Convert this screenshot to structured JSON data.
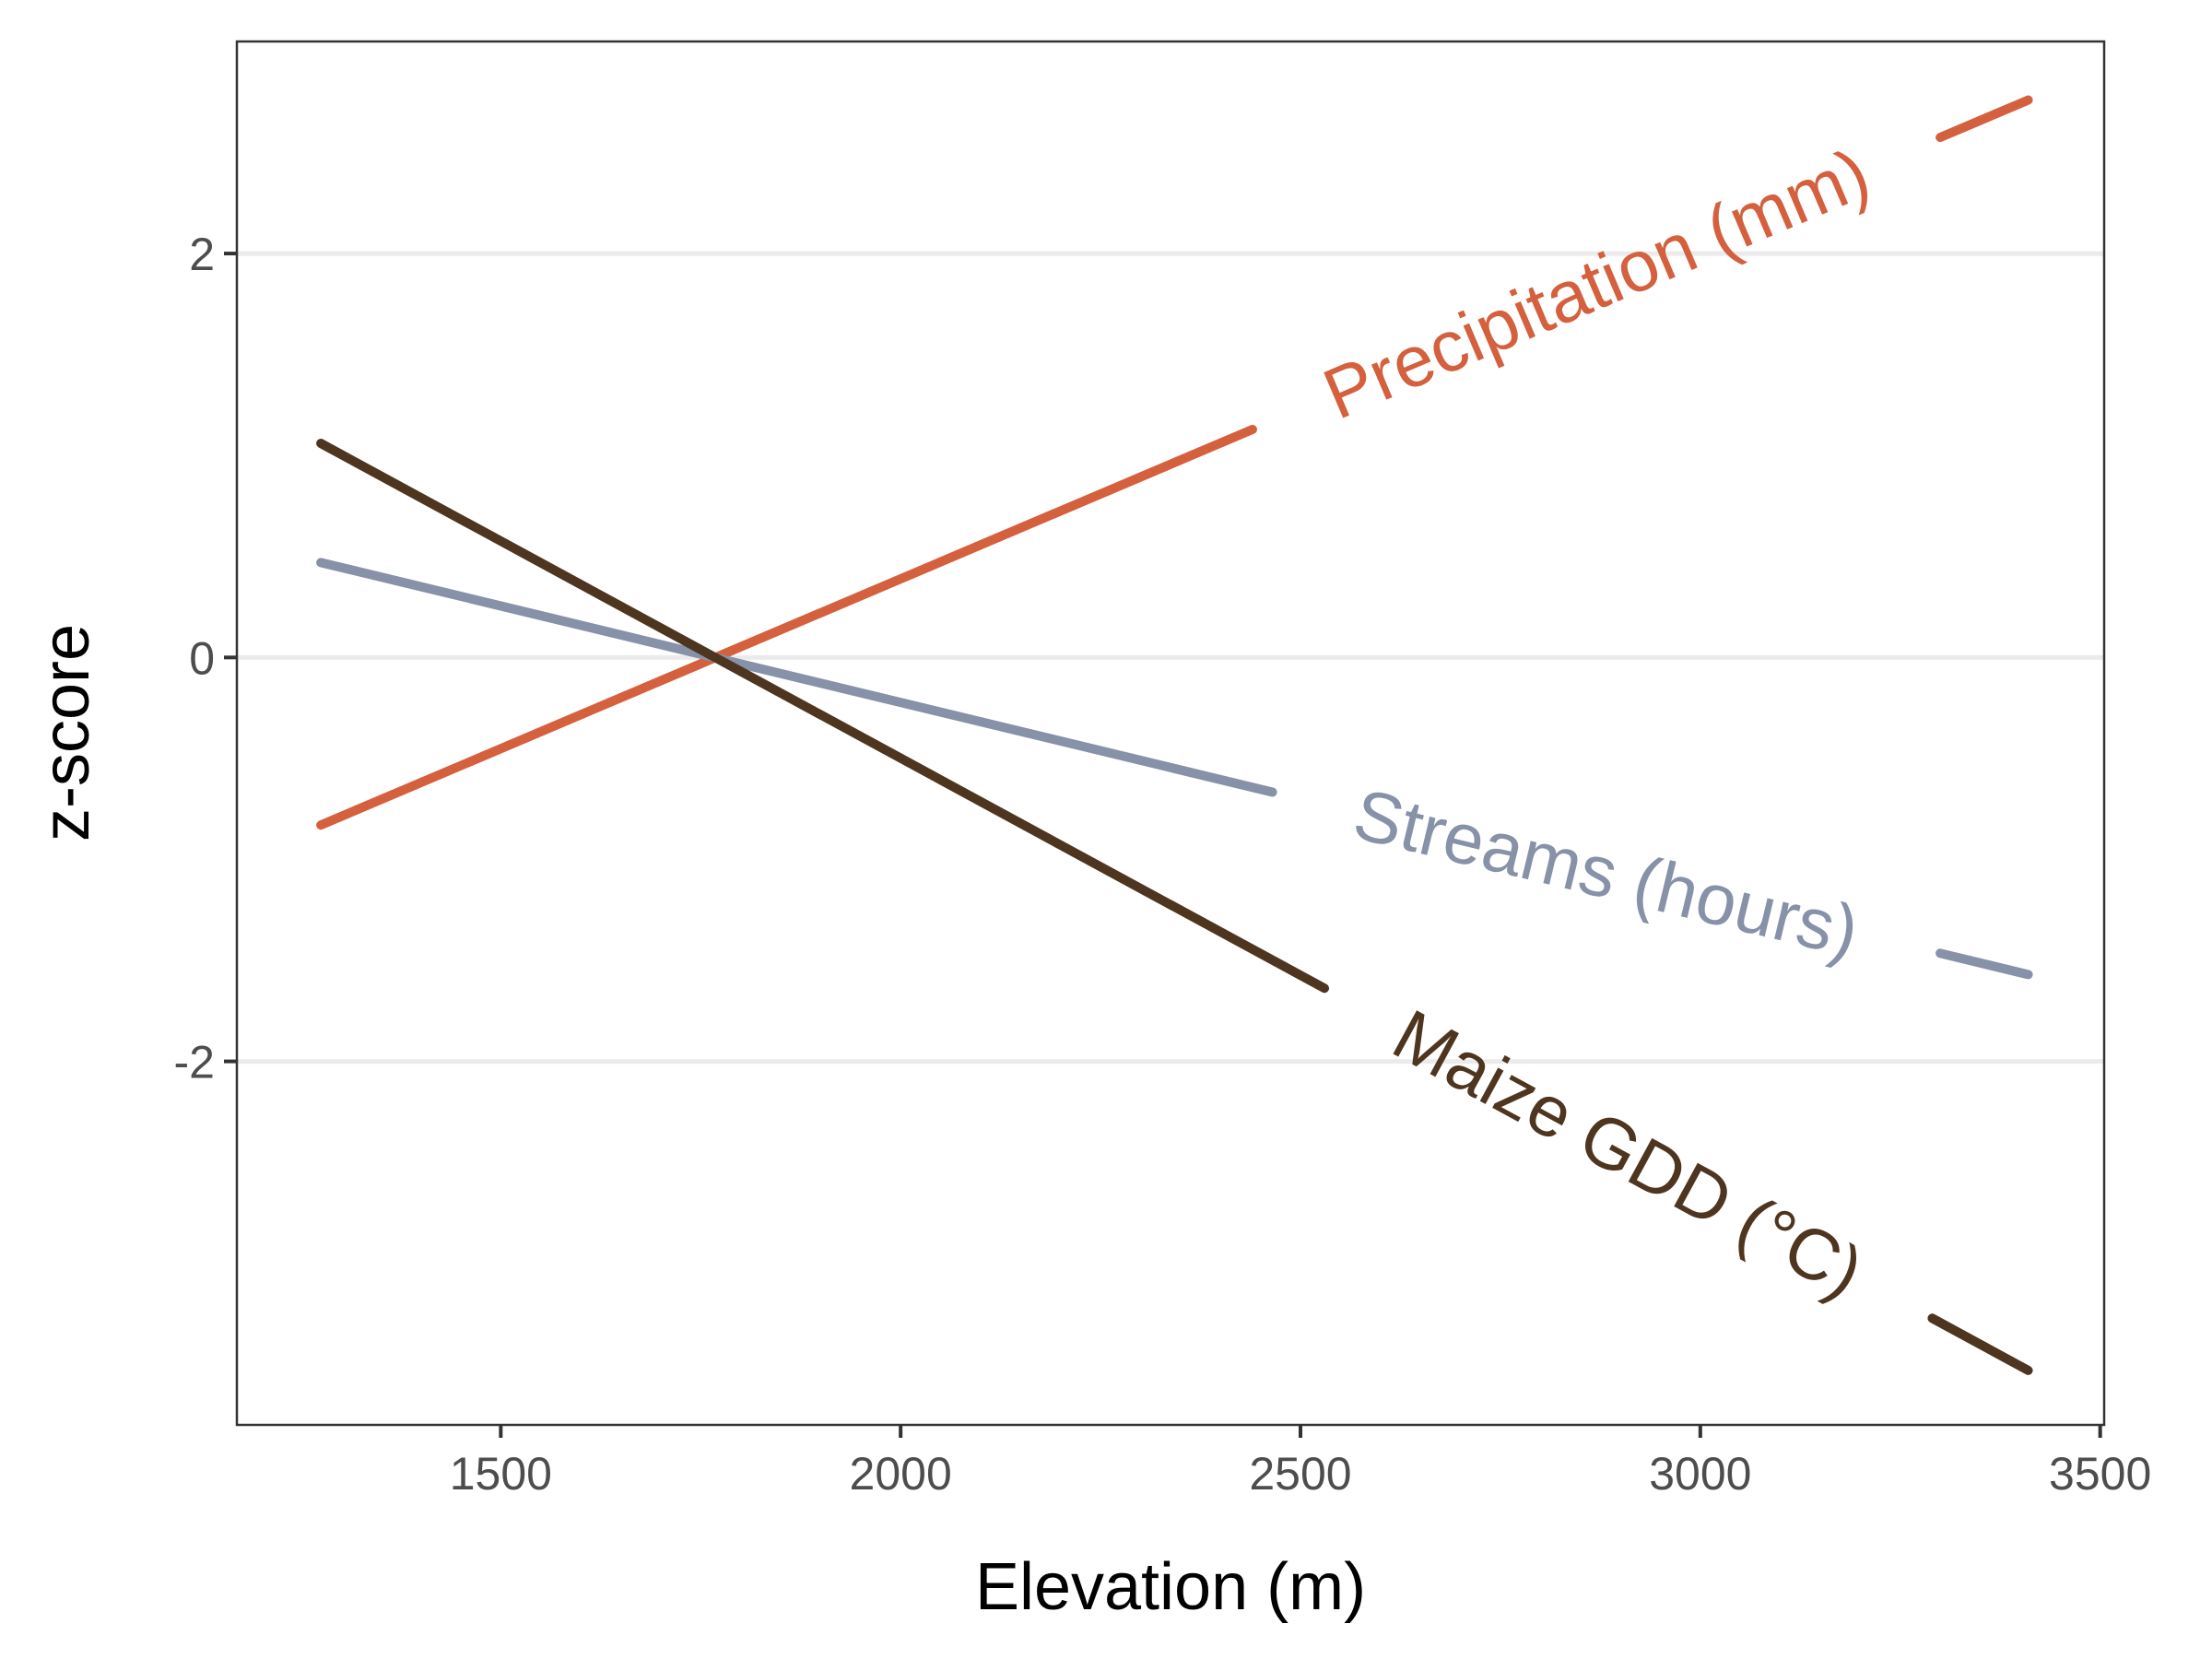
{
  "chart_data": {
    "type": "line",
    "xlabel": "Elevation (m)",
    "ylabel": "z-score",
    "xlim": [
      1170,
      3505
    ],
    "ylim": [
      -3.8,
      3.05
    ],
    "xticks": [
      1500,
      2000,
      2500,
      3000,
      3500
    ],
    "xtick_labels": [
      "1500",
      "2000",
      "2500",
      "3000",
      "3500"
    ],
    "yticks": [
      -2,
      0,
      2
    ],
    "ytick_labels": [
      "-2",
      "0",
      "2"
    ],
    "grid": "horizontal major",
    "legend": "none (direct line labels)",
    "series": [
      {
        "name": "Precipitation (mm)",
        "color": "#d4603d",
        "x": [
          1275,
          3410
        ],
        "y": [
          -0.83,
          2.76
        ],
        "label_x": [
          2440,
          3300
        ]
      },
      {
        "name": "Streams (hours)",
        "color": "#8791a7",
        "x": [
          1275,
          3410
        ],
        "y": [
          0.47,
          -1.57
        ],
        "label_x": [
          2465,
          3300
        ]
      },
      {
        "name": "Maize GDD (°C)",
        "color": "#4e3520",
        "x": [
          1275,
          3410
        ],
        "y": [
          1.06,
          -3.53
        ],
        "label_x": [
          2530,
          3290
        ]
      }
    ]
  }
}
